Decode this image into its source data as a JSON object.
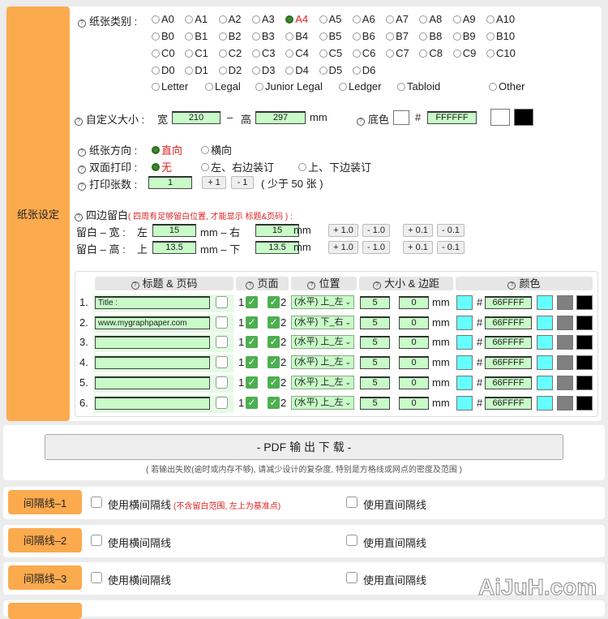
{
  "paper": {
    "side_label": "纸张设定",
    "type_label": "纸张类别 :",
    "type_rows": [
      [
        "A0",
        "A1",
        "A2",
        "A3",
        "A4",
        "A5",
        "A6",
        "A7",
        "A8",
        "A9",
        "A10"
      ],
      [
        "B0",
        "B1",
        "B2",
        "B3",
        "B4",
        "B5",
        "B6",
        "B7",
        "B8",
        "B9",
        "B10"
      ],
      [
        "C0",
        "C1",
        "C2",
        "C3",
        "C4",
        "C5",
        "C6",
        "C7",
        "C8",
        "C9",
        "C10"
      ],
      [
        "D0",
        "D1",
        "D2",
        "D3",
        "D4",
        "D5",
        "D6"
      ]
    ],
    "named_types": [
      "Letter",
      "Legal",
      "Junior Legal",
      "Ledger",
      "Tabloid",
      "Other"
    ],
    "selected_type": "A4",
    "custom_label": "自定义大小 :",
    "width_label": "宽",
    "width": "210",
    "dash": "–",
    "height_label": "高",
    "height": "297",
    "unit": "mm",
    "bg_label": "底色",
    "hash": "#",
    "bg_color": "FFFFFF",
    "orient_label": "纸张方向 :",
    "orient_options": [
      "直向",
      "横向"
    ],
    "orient_selected": "直向",
    "duplex_label": "双面打印 :",
    "duplex_options": [
      "无",
      "左、右边装订",
      "上、下边装订"
    ],
    "duplex_selected": "无",
    "count_label": "打印张数 :",
    "count": "1",
    "plus1": "+ 1",
    "minus1": "- 1",
    "count_note": "( 少于 50 张 )",
    "margin_label": "四边留白",
    "margin_note": "( 四周有足够留白位置, 才能显示 标题&页码 ) :",
    "mw_label": "留白 – 宽 :",
    "left_label": "左",
    "left": "15",
    "mm_right": "mm – 右",
    "right": "15",
    "mh_label": "留白 – 高 :",
    "top_label": "上",
    "top": "13.5",
    "mm_bottom": "mm – 下",
    "bottom": "13.5",
    "p10": "+ 1.0",
    "m10": "- 1.0",
    "p01": "+ 0.1",
    "m01": "- 0.1"
  },
  "header_table": {
    "headers": [
      "标题 & 页码",
      "页面",
      "位置",
      "大小 & 边距",
      "颜色"
    ],
    "rows": [
      {
        "n": "1.",
        "title": "Title :",
        "pos": "(水平) 上_左",
        "size": "5",
        "margin": "0",
        "color": "66FFFF"
      },
      {
        "n": "2.",
        "title": "www.mygraphpaper.com",
        "pos": "(水平) 下_右",
        "size": "5",
        "margin": "0",
        "color": "66FFFF"
      },
      {
        "n": "3.",
        "title": "",
        "pos": "(水平) 上_左",
        "size": "5",
        "margin": "0",
        "color": "66FFFF"
      },
      {
        "n": "4.",
        "title": "",
        "pos": "(水平) 上_左",
        "size": "5",
        "margin": "0",
        "color": "66FFFF"
      },
      {
        "n": "5.",
        "title": "",
        "pos": "(水平) 上_左",
        "size": "5",
        "margin": "0",
        "color": "66FFFF"
      },
      {
        "n": "6.",
        "title": "",
        "pos": "(水平) 上_左",
        "size": "5",
        "margin": "0",
        "color": "66FFFF"
      }
    ],
    "page1": "1",
    "page2": "2",
    "unit": "mm",
    "hash": "#",
    "swatch_colors": [
      "#66FFFF",
      "#808080",
      "#000000"
    ]
  },
  "pdf": {
    "button": "- PDF 输 出 下 载 -",
    "note": "( 若输出失败(逾时或内存不够), 请减少设计的复杂度, 特别是方格线或网点的密度及范围 )"
  },
  "sections": [
    {
      "label": "间隔线–1",
      "h": "使用横间隔线",
      "note": "(不含留白范围, 左上为基准点)",
      "v": "使用直间隔线"
    },
    {
      "label": "间隔线–2",
      "h": "使用横间隔线",
      "v": "使用直间隔线"
    },
    {
      "label": "间隔线–3",
      "h": "使用横间隔线",
      "v": "使用直间隔线"
    }
  ],
  "watermark": "AiJuH.com",
  "colors": {
    "accent": "#fcaa4e",
    "input_bg": "#c8fbc8",
    "selected": "#dd2222"
  }
}
